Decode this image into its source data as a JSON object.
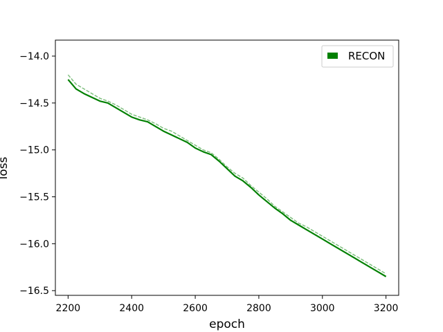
{
  "chart_data": {
    "type": "line",
    "xlabel": "epoch",
    "ylabel": "loss",
    "xlim": [
      2160,
      3240
    ],
    "ylim": [
      -16.55,
      -13.83
    ],
    "x_ticks": [
      2200,
      2400,
      2600,
      2800,
      3000,
      3200
    ],
    "y_ticks": [
      -14.0,
      -14.5,
      -15.0,
      -15.5,
      -16.0,
      -16.5
    ],
    "x_tick_labels": [
      "2200",
      "2400",
      "2600",
      "2800",
      "3000",
      "3200"
    ],
    "y_tick_labels": [
      "−14.0",
      "−14.5",
      "−15.0",
      "−15.5",
      "−16.0",
      "−16.5"
    ],
    "grid": false,
    "legend_position": "top-right",
    "series": [
      {
        "name": "RECON",
        "style": "solid",
        "color": "#008000",
        "x": [
          2200,
          2225,
          2250,
          2275,
          2300,
          2325,
          2350,
          2375,
          2400,
          2425,
          2450,
          2475,
          2500,
          2525,
          2550,
          2575,
          2600,
          2625,
          2650,
          2675,
          2700,
          2725,
          2750,
          2775,
          2800,
          2825,
          2850,
          2875,
          2900,
          2925,
          2950,
          2975,
          3000,
          3025,
          3050,
          3075,
          3100,
          3125,
          3150,
          3175,
          3200
        ],
        "y": [
          -14.25,
          -14.35,
          -14.4,
          -14.44,
          -14.48,
          -14.5,
          -14.55,
          -14.6,
          -14.65,
          -14.68,
          -14.7,
          -14.75,
          -14.8,
          -14.84,
          -14.88,
          -14.92,
          -14.98,
          -15.02,
          -15.05,
          -15.12,
          -15.2,
          -15.28,
          -15.33,
          -15.4,
          -15.48,
          -15.55,
          -15.62,
          -15.68,
          -15.75,
          -15.8,
          -15.85,
          -15.9,
          -15.95,
          -16.0,
          -16.05,
          -16.1,
          -16.15,
          -16.2,
          -16.25,
          -16.3,
          -16.35
        ]
      },
      {
        "name": "",
        "style": "dashed",
        "color": "#80c080",
        "x": [
          2200,
          2225,
          2250,
          2275,
          2300,
          2325,
          2350,
          2375,
          2400,
          2425,
          2450,
          2475,
          2500,
          2525,
          2550,
          2575,
          2600,
          2625,
          2650,
          2675,
          2700,
          2725,
          2750,
          2775,
          2800,
          2825,
          2850,
          2875,
          2900,
          2925,
          2950,
          3000,
          3025,
          3050,
          3075,
          3100,
          3125,
          3150,
          3175,
          3200
        ],
        "y": [
          -14.2,
          -14.3,
          -14.35,
          -14.4,
          -14.45,
          -14.48,
          -14.52,
          -14.57,
          -14.62,
          -14.65,
          -14.68,
          -14.72,
          -14.77,
          -14.8,
          -14.85,
          -14.9,
          -14.95,
          -15.0,
          -15.03,
          -15.1,
          -15.18,
          -15.25,
          -15.3,
          -15.38,
          -15.45,
          -15.52,
          -15.6,
          -15.66,
          -15.72,
          -15.78,
          -15.82,
          -15.92,
          -15.97,
          -16.02,
          -16.07,
          -16.12,
          -16.17,
          -16.22,
          -16.27,
          -16.32
        ]
      }
    ]
  }
}
